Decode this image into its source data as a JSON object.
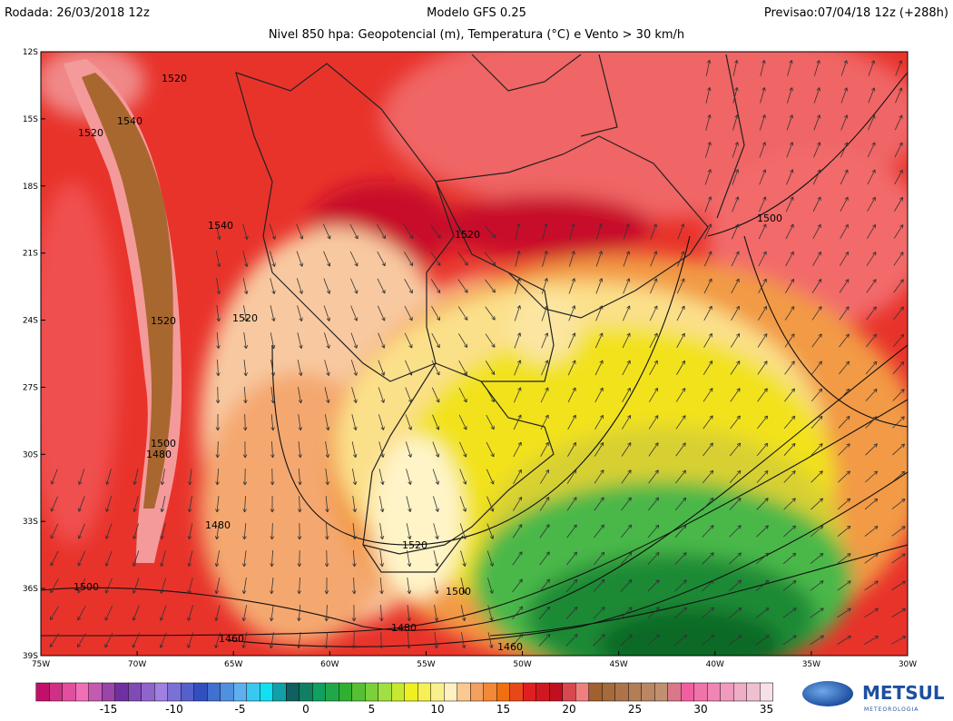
{
  "header": {
    "run": "Rodada: 26/03/2018 12z",
    "model": "Modelo GFS 0.25",
    "forecast": "Previsao:07/04/18 12z (+288h)",
    "subtitle": "Nivel 850 hpa: Geopotencial (m), Temperatura (°C) e Vento > 30 km/h"
  },
  "map": {
    "lat_labels": [
      "12S",
      "15S",
      "18S",
      "21S",
      "24S",
      "27S",
      "30S",
      "33S",
      "36S",
      "39S"
    ],
    "lon_labels": [
      "75W",
      "70W",
      "65W",
      "60W",
      "55W",
      "50W",
      "45W",
      "40W",
      "35W",
      "30W"
    ],
    "contour_labels": [
      "1520",
      "1540",
      "1520",
      "1540",
      "1520",
      "1500",
      "1520",
      "1520",
      "1500",
      "1480",
      "1480",
      "1520",
      "1500",
      "1500",
      "1480",
      "1460",
      "1460"
    ]
  },
  "colorbar": {
    "ticks": [
      -15,
      -10,
      -5,
      0,
      5,
      10,
      15,
      20,
      25,
      30,
      35
    ]
  },
  "logo": {
    "name": "METSUL",
    "tagline": "METEOROLOGIA"
  }
}
